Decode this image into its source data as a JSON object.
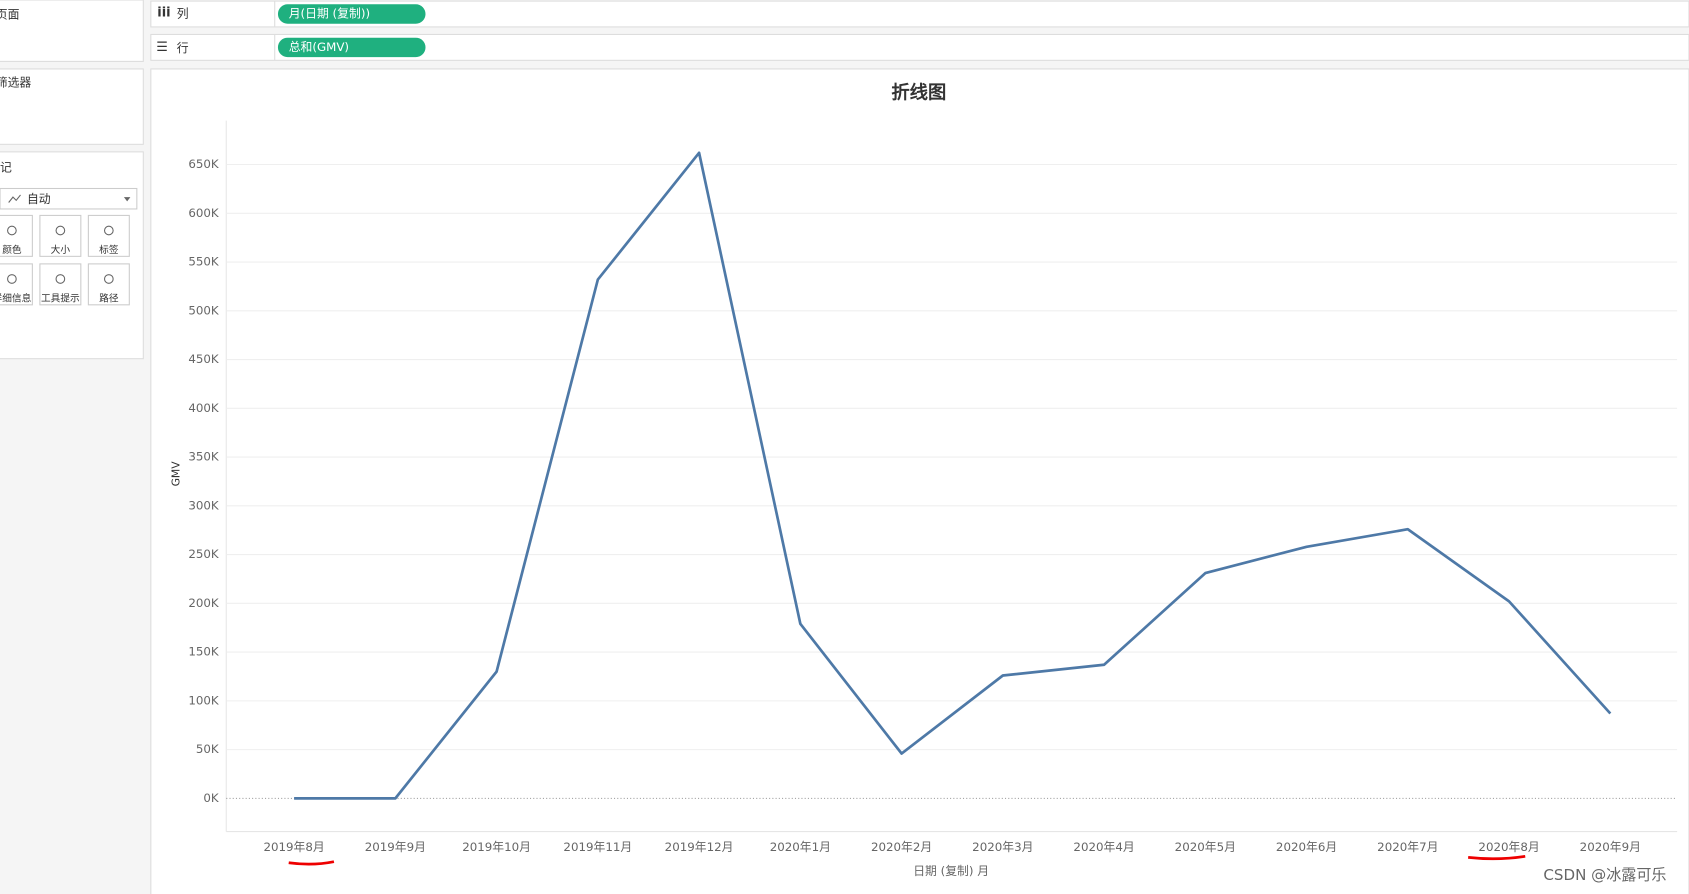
{
  "ui": {
    "pages": "页面",
    "filters": "筛选器",
    "marks": "标记",
    "mark_type": "自动",
    "mark_buttons": [
      "颜色",
      "大小",
      "标签",
      "详细信息",
      "工具提示",
      "路径"
    ],
    "columns_label": "列",
    "columns_pill": "月(日期 (复制))",
    "rows_label": "行",
    "rows_pill": "总和(GMV)",
    "watermark": "CSDN @冰露可乐"
  },
  "chart_data": {
    "type": "line",
    "title": "折线图",
    "x_label": "日期 (复制) 月",
    "y_label": "GMV",
    "categories": [
      "2019年8月",
      "2019年9月",
      "2019年10月",
      "2019年11月",
      "2019年12月",
      "2020年1月",
      "2020年2月",
      "2020年3月",
      "2020年4月",
      "2020年5月",
      "2020年6月",
      "2020年7月",
      "2020年8月",
      "2020年9月"
    ],
    "series": [
      {
        "name": "GMV",
        "color": "#4e79a7",
        "values": [
          0,
          0,
          130000,
          532000,
          662000,
          179000,
          46000,
          126000,
          137000,
          231000,
          258000,
          276000,
          202000,
          87000
        ]
      }
    ],
    "ylim": [
      -34000,
      695000
    ],
    "yticks": [
      {
        "value": 0,
        "label": "0K"
      },
      {
        "value": 50000,
        "label": "50K"
      },
      {
        "value": 100000,
        "label": "100K"
      },
      {
        "value": 150000,
        "label": "150K"
      },
      {
        "value": 200000,
        "label": "200K"
      },
      {
        "value": 250000,
        "label": "250K"
      },
      {
        "value": 300000,
        "label": "300K"
      },
      {
        "value": 350000,
        "label": "350K"
      },
      {
        "value": 400000,
        "label": "400K"
      },
      {
        "value": 450000,
        "label": "450K"
      },
      {
        "value": 500000,
        "label": "500K"
      },
      {
        "value": 550000,
        "label": "550K"
      },
      {
        "value": 600000,
        "label": "600K"
      },
      {
        "value": 650000,
        "label": "650K"
      }
    ],
    "grid": true
  }
}
